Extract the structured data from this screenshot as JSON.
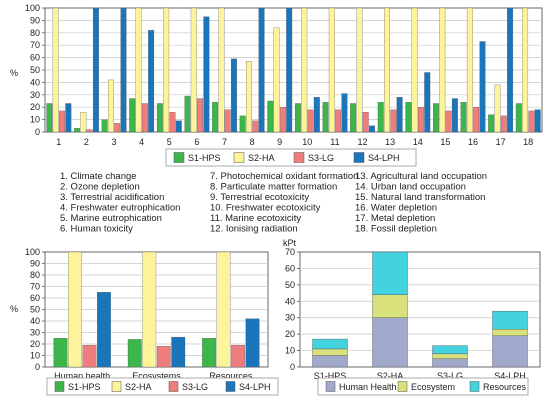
{
  "chart_data": [
    {
      "type": "bar",
      "ylabel": "%",
      "ylim": [
        0,
        100
      ],
      "yticks": [
        0,
        10,
        20,
        30,
        40,
        50,
        60,
        70,
        80,
        90,
        100
      ],
      "categories": [
        "1",
        "2",
        "3",
        "4",
        "5",
        "6",
        "7",
        "8",
        "9",
        "10",
        "11",
        "12",
        "13",
        "14",
        "15",
        "16",
        "17",
        "18"
      ],
      "grid": true,
      "legend": "bottom",
      "series": [
        {
          "name": "S1-HPS",
          "color": "#3cb54a",
          "values": [
            23,
            3,
            10,
            27,
            23,
            29,
            24,
            13,
            25,
            23,
            24,
            23,
            24,
            24,
            23,
            24,
            14,
            23
          ]
        },
        {
          "name": "S2-HA",
          "color": "#fdf39a",
          "values": [
            100,
            16,
            42,
            100,
            100,
            100,
            100,
            57,
            84,
            100,
            100,
            100,
            100,
            100,
            100,
            100,
            38,
            100
          ]
        },
        {
          "name": "S3-LG",
          "color": "#f07d7d",
          "values": [
            17,
            2,
            7,
            23,
            16,
            27,
            18,
            9,
            20,
            18,
            18,
            16,
            18,
            20,
            17,
            20,
            13,
            17
          ]
        },
        {
          "name": "S4-LPH",
          "color": "#1b75bb",
          "values": [
            23,
            100,
            100,
            82,
            9,
            93,
            59,
            100,
            100,
            28,
            31,
            5,
            28,
            48,
            27,
            73,
            100,
            18
          ]
        }
      ],
      "category_legend": [
        "1. Climate change",
        "2. Ozone depletion",
        "3. Terrestrial acidification",
        "4. Freshwater eutrophication",
        "5. Marine eutrophication",
        "6. Human toxicity",
        "7. Photochemical oxidant formation",
        "8. Particulate matter formation",
        "9. Terrestrial ecotoxicity",
        "10. Freshwater ecotoxicity",
        "11. Marine ecotoxicity",
        "12. Ionising radiation",
        "13. Agricultural land occupation",
        "14. Urban land occupation",
        "15. Natural land transformation",
        "16. Water depletion",
        "17. Metal depletion",
        "18. Fossil depletion"
      ]
    },
    {
      "type": "bar",
      "ylabel": "%",
      "ylim": [
        0,
        100
      ],
      "yticks": [
        0,
        10,
        20,
        30,
        40,
        50,
        60,
        70,
        80,
        90,
        100
      ],
      "categories": [
        "Human health",
        "Ecosystems",
        "Resources"
      ],
      "grid": true,
      "legend": "bottom",
      "series": [
        {
          "name": "S1-HPS",
          "color": "#3cb54a",
          "values": [
            25,
            24,
            25
          ]
        },
        {
          "name": "S2-HA",
          "color": "#fdf39a",
          "values": [
            100,
            100,
            100
          ]
        },
        {
          "name": "S3-LG",
          "color": "#f07d7d",
          "values": [
            19,
            18,
            19
          ]
        },
        {
          "name": "S4-LPH",
          "color": "#1b75bb",
          "values": [
            65,
            26,
            42
          ]
        }
      ]
    },
    {
      "type": "bar",
      "stacked": true,
      "ylabel": "kPt",
      "ylim": [
        0,
        70
      ],
      "yticks": [
        0,
        10,
        20,
        30,
        40,
        50,
        60,
        70
      ],
      "categories": [
        "S1-HPS",
        "S2-HA",
        "S3-LG",
        "S4-LPH"
      ],
      "grid": true,
      "legend": "bottom",
      "series": [
        {
          "name": "Human Health",
          "color": "#a1a9cc",
          "values": [
            7,
            30,
            5,
            19
          ]
        },
        {
          "name": "Ecosystem",
          "color": "#d8e17c",
          "values": [
            4,
            14,
            3,
            4
          ]
        },
        {
          "name": "Resources",
          "color": "#43d2e0",
          "values": [
            6,
            26,
            5,
            11
          ]
        }
      ]
    }
  ]
}
